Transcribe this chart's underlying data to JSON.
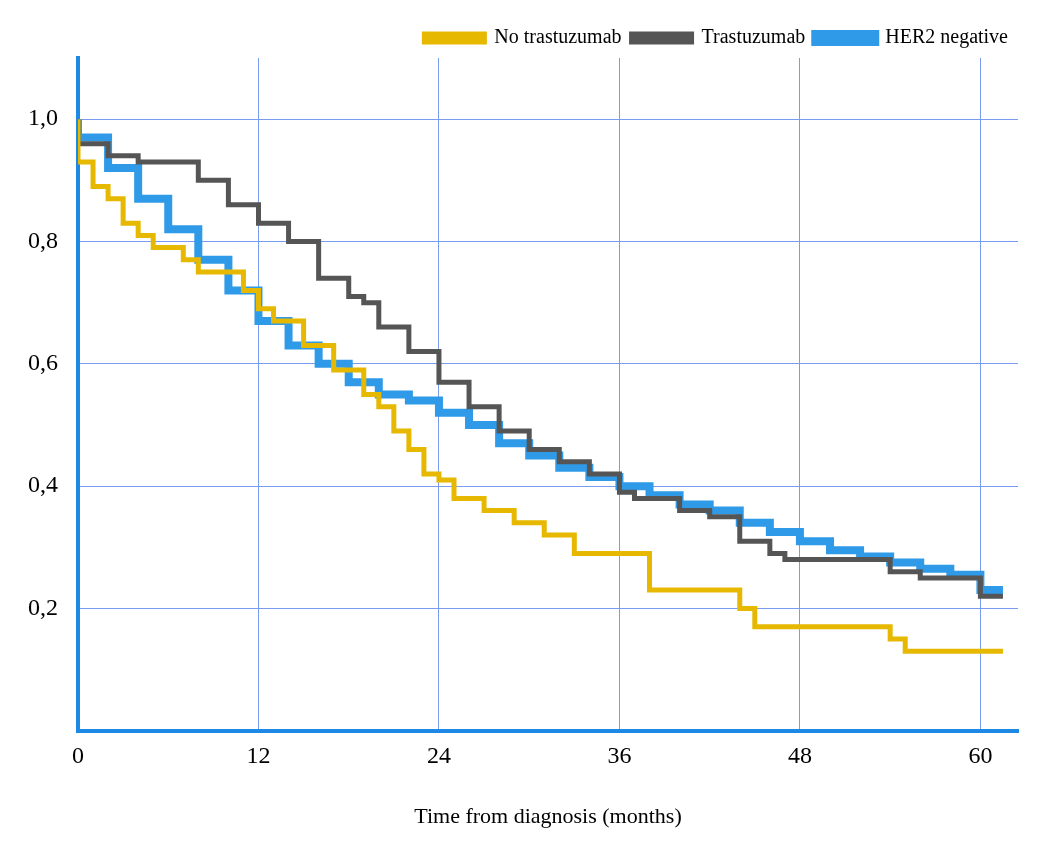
{
  "chart_data": {
    "type": "step",
    "xlabel": "Time from diagnosis (months)",
    "xlim": [
      0,
      62.5
    ],
    "ylim": [
      0,
      1.1
    ],
    "xticks": [
      0,
      12,
      24,
      36,
      48,
      60
    ],
    "yticks": [
      {
        "value": 0.2,
        "label": "0,2"
      },
      {
        "value": 0.4,
        "label": "0,4"
      },
      {
        "value": 0.6,
        "label": "0,6"
      },
      {
        "value": 0.8,
        "label": "0,8"
      },
      {
        "value": 1,
        "label": "1,0"
      }
    ],
    "grid": true,
    "legend": "top right",
    "line_style": "solid",
    "marker": "none",
    "series": [
      {
        "name": "HER2 negative",
        "color": "#2f9be8",
        "x": [
          0,
          2,
          4,
          6,
          8,
          10,
          12,
          14,
          16,
          18,
          20,
          22,
          24,
          26,
          28,
          30,
          32,
          34,
          36,
          38,
          40,
          42,
          44,
          46,
          48,
          50,
          52,
          54,
          56,
          58,
          60,
          61.5
        ],
        "values": [
          1.0,
          0.97,
          0.92,
          0.87,
          0.82,
          0.77,
          0.72,
          0.67,
          0.63,
          0.6,
          0.57,
          0.55,
          0.54,
          0.52,
          0.5,
          0.47,
          0.45,
          0.43,
          0.415,
          0.4,
          0.385,
          0.37,
          0.36,
          0.34,
          0.325,
          0.31,
          0.295,
          0.285,
          0.275,
          0.265,
          0.255,
          0.23
        ]
      },
      {
        "name": "No trastuzumab",
        "color": "#e6b800",
        "x": [
          0,
          1,
          2,
          3,
          4,
          5,
          7,
          8,
          9,
          11,
          12,
          13,
          15,
          17,
          19,
          20,
          21,
          22,
          23,
          24,
          25,
          27,
          29,
          31,
          33,
          35,
          38,
          40,
          44,
          45,
          47,
          54,
          55,
          61,
          61.5
        ],
        "values": [
          1.0,
          0.93,
          0.89,
          0.87,
          0.83,
          0.81,
          0.79,
          0.77,
          0.75,
          0.75,
          0.72,
          0.69,
          0.67,
          0.63,
          0.59,
          0.55,
          0.53,
          0.49,
          0.46,
          0.42,
          0.41,
          0.38,
          0.36,
          0.34,
          0.32,
          0.29,
          0.29,
          0.23,
          0.23,
          0.2,
          0.17,
          0.17,
          0.15,
          0.13,
          0.13
        ]
      },
      {
        "name": "Trastuzumab",
        "color": "#555555",
        "x": [
          0,
          2,
          4,
          5,
          8,
          10,
          12,
          14,
          16,
          18,
          19,
          20,
          22,
          24,
          26,
          28,
          30,
          32,
          34,
          36,
          37,
          40,
          42,
          44,
          46,
          47,
          50,
          54,
          56,
          60,
          61.5
        ],
        "values": [
          1.0,
          0.96,
          0.94,
          0.93,
          0.93,
          0.9,
          0.86,
          0.83,
          0.8,
          0.74,
          0.71,
          0.7,
          0.66,
          0.62,
          0.57,
          0.53,
          0.49,
          0.46,
          0.44,
          0.42,
          0.39,
          0.38,
          0.36,
          0.35,
          0.31,
          0.29,
          0.28,
          0.28,
          0.26,
          0.25,
          0.22
        ]
      }
    ]
  }
}
